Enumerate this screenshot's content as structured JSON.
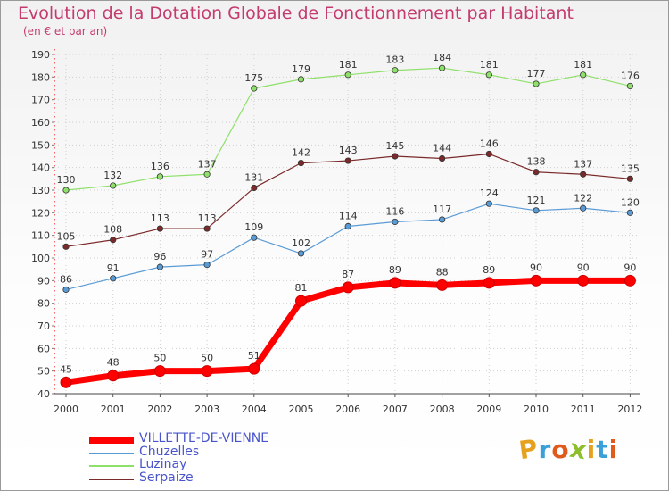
{
  "header": {
    "title": "Evolution de la Dotation Globale de Fonctionnement par Habitant",
    "subtitle": "(en € et par an)"
  },
  "logo": {
    "text": "Proxiti",
    "colors": [
      "#e6a21f",
      "#3aa0d8",
      "#e05a1e",
      "#8dbf2b",
      "#e6a21f",
      "#3aa0d8",
      "#e05a1e"
    ]
  },
  "chart_data": {
    "type": "line",
    "title": "Evolution de la Dotation Globale de Fonctionnement par Habitant",
    "subtitle": "(en € et par an)",
    "x": [
      "2000",
      "2001",
      "2002",
      "2003",
      "2004",
      "2005",
      "2006",
      "2007",
      "2008",
      "2009",
      "2010",
      "2011",
      "2012"
    ],
    "ylim": [
      40,
      190
    ],
    "yticks": [
      40,
      50,
      60,
      70,
      80,
      90,
      100,
      110,
      120,
      130,
      140,
      150,
      160,
      170,
      180,
      190
    ],
    "grid": true,
    "legend": "bottom-left",
    "series": [
      {
        "name": "VILLETTE-DE-VIENNE",
        "color": "#ff0000",
        "values": [
          45,
          48,
          50,
          50,
          51,
          81,
          87,
          89,
          88,
          89,
          90,
          90,
          90
        ]
      },
      {
        "name": "Chuzelles",
        "color": "#5b9bd5",
        "values": [
          86,
          91,
          96,
          97,
          109,
          102,
          114,
          116,
          117,
          124,
          121,
          122,
          120
        ]
      },
      {
        "name": "Luzinay",
        "color": "#8fe06a",
        "values": [
          130,
          132,
          136,
          137,
          175,
          179,
          181,
          183,
          184,
          181,
          177,
          181,
          176
        ]
      },
      {
        "name": "Serpaize",
        "color": "#7a2a2a",
        "values": [
          105,
          108,
          113,
          113,
          131,
          142,
          143,
          145,
          144,
          146,
          138,
          137,
          135
        ]
      }
    ]
  }
}
